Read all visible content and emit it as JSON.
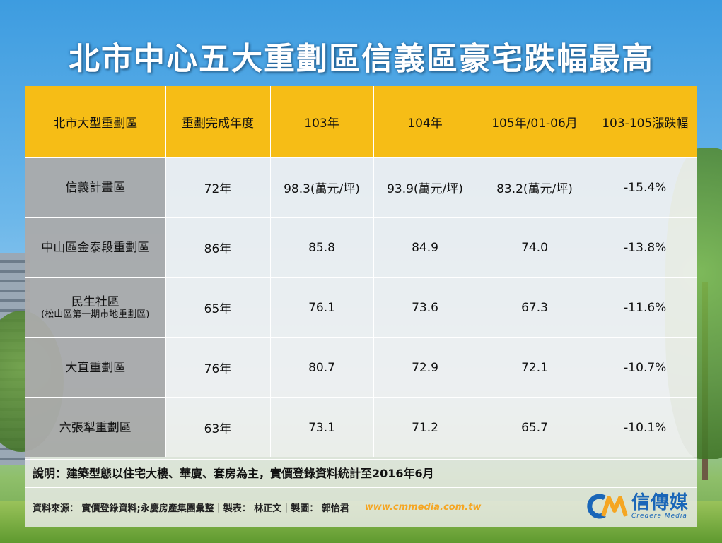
{
  "title": "北市中心五大重劃區信義區豪宅跌幅最高",
  "table": {
    "headers": [
      "北市大型重劃區",
      "重劃完成年度",
      "103年",
      "104年",
      "105年/01-06月",
      "103-105漲跌幅"
    ],
    "rows": [
      {
        "name": "信義計畫區",
        "sub": "",
        "year": "72年",
        "y103": "98.3(萬元/坪)",
        "y104": "93.9(萬元/坪)",
        "y105": "83.2(萬元/坪)",
        "change": "-15.4%"
      },
      {
        "name": "中山區金泰段重劃區",
        "sub": "",
        "year": "86年",
        "y103": "85.8",
        "y104": "84.9",
        "y105": "74.0",
        "change": "-13.8%"
      },
      {
        "name": "民生社區",
        "sub": "(松山區第一期市地重劃區)",
        "year": "65年",
        "y103": "76.1",
        "y104": "73.6",
        "y105": "67.3",
        "change": "-11.6%"
      },
      {
        "name": "大直重劃區",
        "sub": "",
        "year": "76年",
        "y103": "80.7",
        "y104": "72.9",
        "y105": "72.1",
        "change": "-10.7%"
      },
      {
        "name": "六張犁重劃區",
        "sub": "",
        "year": "63年",
        "y103": "73.1",
        "y104": "71.2",
        "y105": "65.7",
        "change": "-10.1%"
      }
    ]
  },
  "note": "說明：建築型態以住宅大樓、華廈、套房為主，實價登錄資料統計至2016年6月",
  "footer": {
    "credit": "資料來源： 實價登錄資料;永慶房產集團彙整｜製表： 林正文｜製圖： 郭怡君",
    "site": "www.cmmedia.com.tw",
    "logo_name": "信傳媒",
    "logo_sub": "Credere Media"
  },
  "colors": {
    "header_yellow": "#f6bd16",
    "label_gray": "#969696",
    "logo_blue": "#1a66b8",
    "logo_orange": "#f5a623"
  }
}
